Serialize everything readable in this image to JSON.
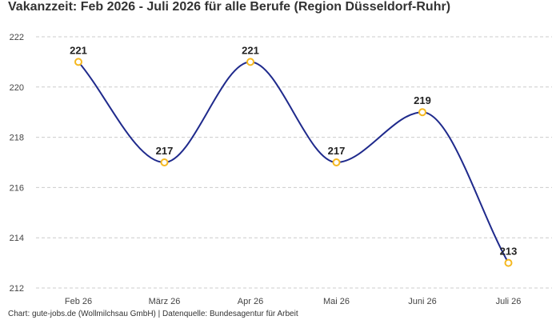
{
  "chart_data": {
    "type": "line",
    "title": "Vakanzzeit: Feb 2026 - Juli 2026 für alle Berufe (Region Düsseldorf-Ruhr)",
    "xlabel": "",
    "ylabel": "",
    "categories": [
      "Feb 26",
      "März 26",
      "Apr 26",
      "Mai 26",
      "Juni 26",
      "Juli 26"
    ],
    "series": [
      {
        "values": [
          221,
          217,
          221,
          217,
          219,
          213
        ]
      }
    ],
    "ylim": [
      212,
      222
    ],
    "yticks": [
      212,
      214,
      216,
      218,
      220,
      222
    ],
    "grid": true,
    "smooth": true,
    "line_color": "#1f2a8c",
    "marker_color": "#f5b820",
    "grid_color": "#cccccc"
  },
  "footer": {
    "source": "Chart: gute-jobs.de (Wollmilchsau GmbH) | Datenquelle: Bundesagentur für Arbeit"
  }
}
